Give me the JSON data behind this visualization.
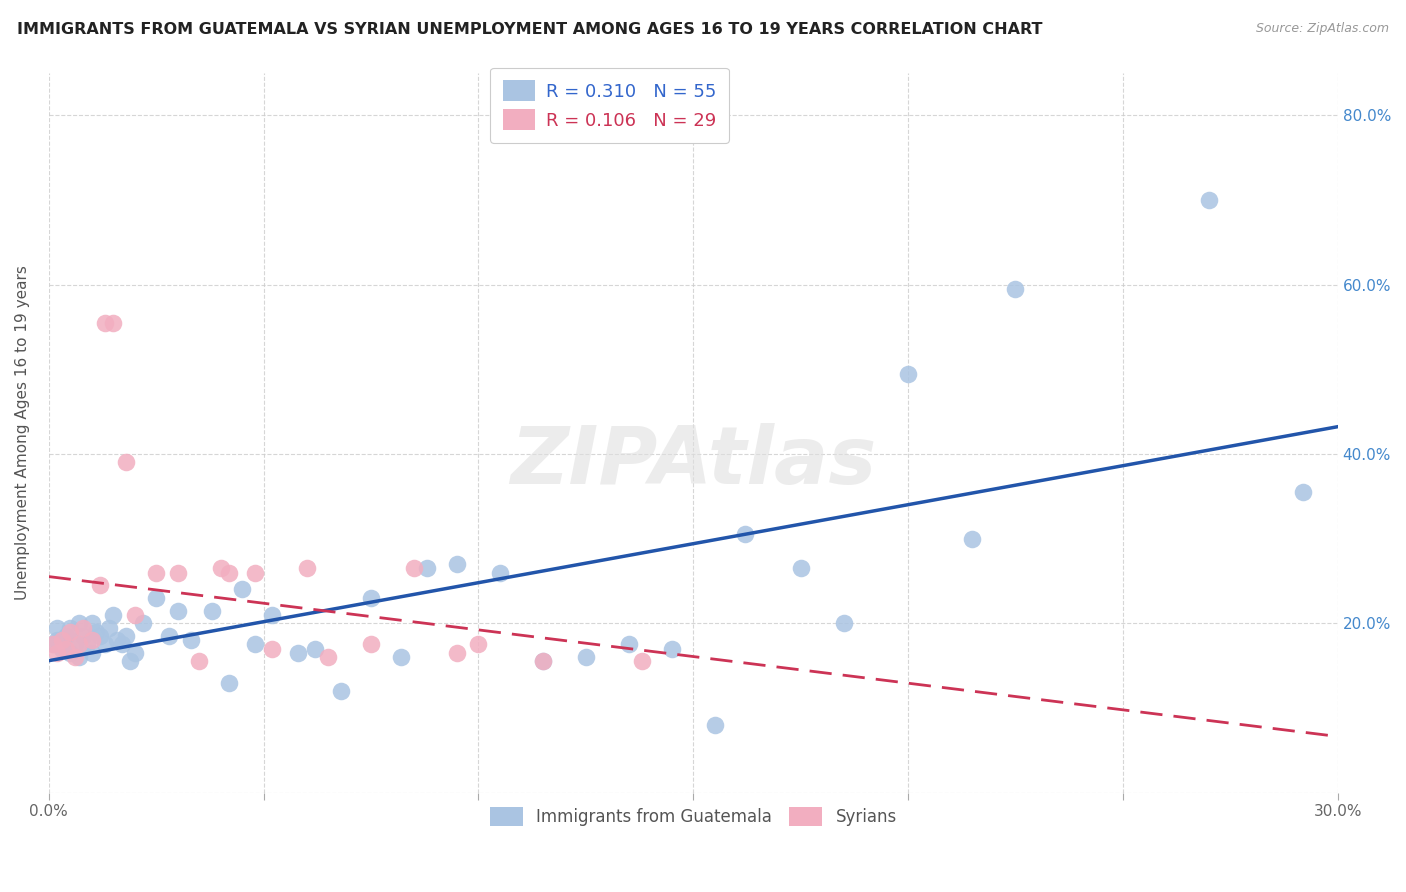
{
  "title": "IMMIGRANTS FROM GUATEMALA VS SYRIAN UNEMPLOYMENT AMONG AGES 16 TO 19 YEARS CORRELATION CHART",
  "source": "Source: ZipAtlas.com",
  "ylabel": "Unemployment Among Ages 16 to 19 years",
  "xlim": [
    0.0,
    0.3
  ],
  "ylim": [
    0.0,
    0.85
  ],
  "xticks": [
    0.0,
    0.05,
    0.1,
    0.15,
    0.2,
    0.25,
    0.3
  ],
  "yticks": [
    0.0,
    0.2,
    0.4,
    0.6,
    0.8
  ],
  "yticklabels_right": [
    "",
    "20.0%",
    "40.0%",
    "60.0%",
    "80.0%"
  ],
  "guatemala_R": "0.310",
  "guatemala_N": "55",
  "syrian_R": "0.106",
  "syrian_N": "29",
  "guatemala_color": "#aac4e2",
  "syrian_color": "#f2aec0",
  "guatemala_line_color": "#2255aa",
  "syrian_line_color": "#cc3355",
  "blue_text_color": "#3366cc",
  "pink_text_color": "#cc3355",
  "right_axis_color": "#4488cc",
  "watermark_text": "ZIPAtlas",
  "guatemala_x": [
    0.001,
    0.002,
    0.002,
    0.003,
    0.004,
    0.005,
    0.005,
    0.006,
    0.007,
    0.007,
    0.008,
    0.009,
    0.01,
    0.01,
    0.011,
    0.012,
    0.013,
    0.014,
    0.015,
    0.016,
    0.017,
    0.018,
    0.019,
    0.02,
    0.022,
    0.025,
    0.028,
    0.03,
    0.033,
    0.038,
    0.042,
    0.045,
    0.048,
    0.052,
    0.058,
    0.062,
    0.068,
    0.075,
    0.082,
    0.088,
    0.095,
    0.105,
    0.115,
    0.125,
    0.135,
    0.145,
    0.155,
    0.162,
    0.175,
    0.185,
    0.2,
    0.215,
    0.225,
    0.27,
    0.292
  ],
  "guatemala_y": [
    0.175,
    0.18,
    0.195,
    0.17,
    0.185,
    0.165,
    0.195,
    0.175,
    0.2,
    0.16,
    0.185,
    0.175,
    0.2,
    0.165,
    0.19,
    0.185,
    0.175,
    0.195,
    0.21,
    0.18,
    0.175,
    0.185,
    0.155,
    0.165,
    0.2,
    0.23,
    0.185,
    0.215,
    0.18,
    0.215,
    0.13,
    0.24,
    0.175,
    0.21,
    0.165,
    0.17,
    0.12,
    0.23,
    0.16,
    0.265,
    0.27,
    0.26,
    0.155,
    0.16,
    0.175,
    0.17,
    0.08,
    0.305,
    0.265,
    0.2,
    0.495,
    0.3,
    0.595,
    0.7,
    0.355
  ],
  "syrian_x": [
    0.001,
    0.002,
    0.003,
    0.004,
    0.005,
    0.006,
    0.007,
    0.008,
    0.01,
    0.012,
    0.013,
    0.015,
    0.018,
    0.02,
    0.025,
    0.03,
    0.035,
    0.04,
    0.042,
    0.048,
    0.052,
    0.06,
    0.065,
    0.075,
    0.085,
    0.095,
    0.1,
    0.115,
    0.138
  ],
  "syrian_y": [
    0.175,
    0.165,
    0.18,
    0.17,
    0.19,
    0.16,
    0.175,
    0.195,
    0.18,
    0.245,
    0.555,
    0.555,
    0.39,
    0.21,
    0.26,
    0.26,
    0.155,
    0.265,
    0.26,
    0.26,
    0.17,
    0.265,
    0.16,
    0.175,
    0.265,
    0.165,
    0.175,
    0.155,
    0.155
  ]
}
